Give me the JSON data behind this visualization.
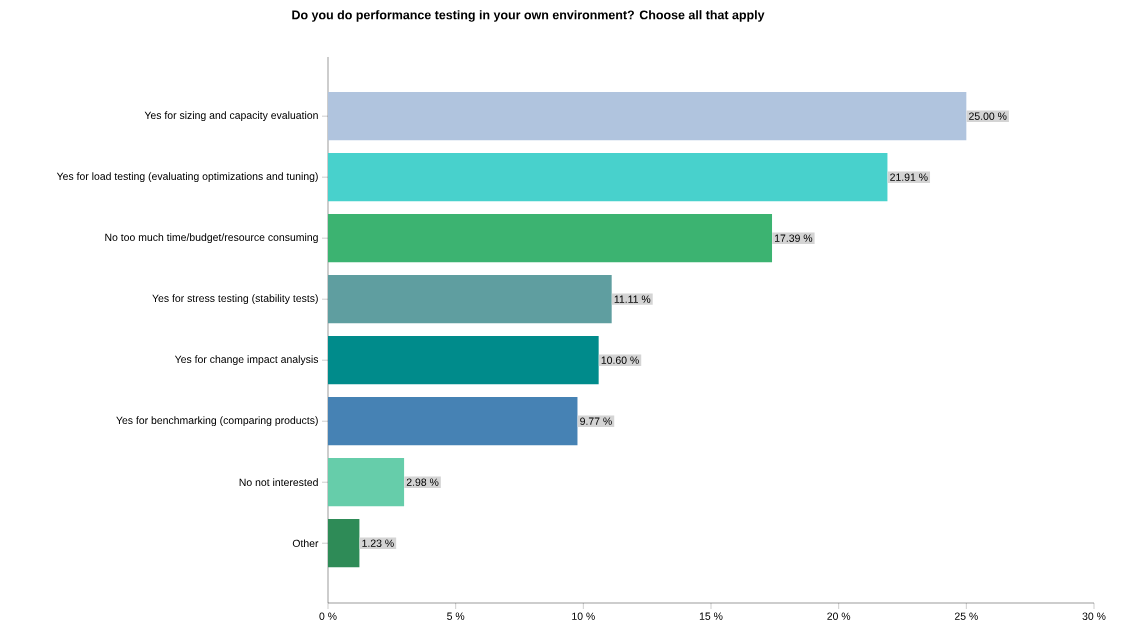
{
  "chart_data": {
    "type": "bar",
    "orientation": "horizontal",
    "title": "Do you do performance testing in your own environment? Choose all that apply",
    "categories": [
      "Yes for sizing and capacity evaluation",
      "Yes for load testing (evaluating optimizations and tuning)",
      "No too much time/budget/resource consuming",
      "Yes for stress testing (stability tests)",
      "Yes for change impact analysis",
      "Yes for benchmarking (comparing products)",
      "No not interested",
      "Other"
    ],
    "values": [
      25.0,
      21.91,
      17.39,
      11.11,
      10.6,
      9.77,
      2.98,
      1.23
    ],
    "value_labels": [
      "25.00 %",
      "21.91 %",
      "17.39 %",
      "11.11 %",
      "10.60 %",
      "9.77 %",
      "2.98 %",
      "1.23 %"
    ],
    "colors": [
      "#b0c4de",
      "#48d1cc",
      "#3cb371",
      "#5f9ea0",
      "#008b8b",
      "#4682b4",
      "#66cdaa",
      "#2e8b57"
    ],
    "xlim": [
      0,
      30
    ],
    "xticks": [
      {
        "value": 0,
        "label": "0 %"
      },
      {
        "value": 5,
        "label": "5 %"
      },
      {
        "value": 10,
        "label": "10 %"
      },
      {
        "value": 15,
        "label": "15 %"
      },
      {
        "value": 20,
        "label": "20 %"
      },
      {
        "value": 25,
        "label": "25 %"
      },
      {
        "value": 30,
        "label": "30 %"
      }
    ]
  }
}
